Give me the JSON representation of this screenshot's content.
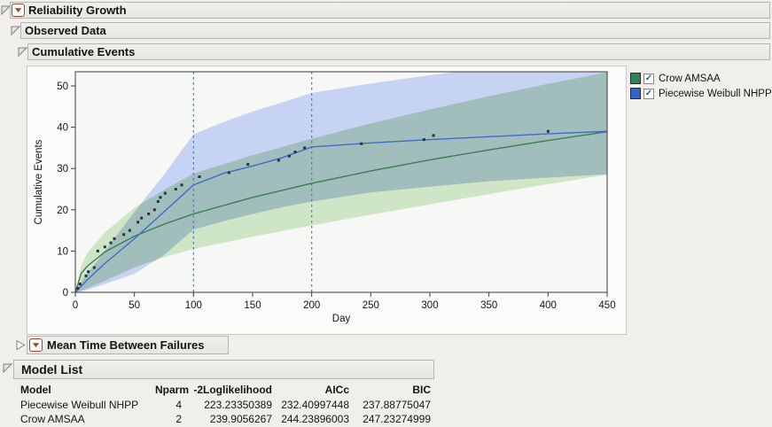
{
  "page_bg": "#f0efec",
  "outline": {
    "reliability_growth": {
      "label": "Reliability Growth",
      "expanded": true,
      "has_menu": true
    },
    "observed_data": {
      "label": "Observed Data",
      "expanded": true
    },
    "cumulative_events": {
      "label": "Cumulative Events",
      "expanded": true
    },
    "mtbf": {
      "label": "Mean Time Between Failures",
      "expanded": false,
      "has_menu": true
    },
    "model_list": {
      "label": "Model List",
      "expanded": true
    }
  },
  "legend": {
    "items": [
      {
        "label": "Crow AMSAA",
        "checked": true,
        "swatch_color": "#2e8456"
      },
      {
        "label": "Piecewise Weibull NHPP",
        "checked": true,
        "swatch_color": "#3464c8"
      }
    ]
  },
  "chart_data": {
    "type": "line",
    "title": "Cumulative Events",
    "xlabel": "Day",
    "ylabel": "Cumulative Events",
    "xlim": [
      0,
      450
    ],
    "ylim": [
      0,
      53.4
    ],
    "xticks": [
      0,
      50,
      100,
      150,
      200,
      250,
      300,
      350,
      400,
      450
    ],
    "yticks": [
      0,
      10,
      20,
      30,
      40,
      50
    ],
    "grid": false,
    "legend_position": "right-top",
    "phase_lines_x": [
      100,
      200
    ],
    "phase_line_color": "#4472ca",
    "observed_points": [
      [
        2,
        1
      ],
      [
        4,
        2
      ],
      [
        9,
        4
      ],
      [
        11,
        5
      ],
      [
        16,
        6
      ],
      [
        19,
        10
      ],
      [
        25,
        11
      ],
      [
        30,
        12
      ],
      [
        33,
        13
      ],
      [
        41,
        14
      ],
      [
        46,
        15
      ],
      [
        53,
        17
      ],
      [
        56,
        18
      ],
      [
        62,
        19
      ],
      [
        67,
        20
      ],
      [
        70,
        22
      ],
      [
        72,
        23
      ],
      [
        76,
        24
      ],
      [
        85,
        25
      ],
      [
        90,
        26
      ],
      [
        105,
        28
      ],
      [
        130,
        29
      ],
      [
        146,
        31
      ],
      [
        172,
        32
      ],
      [
        181,
        33
      ],
      [
        186,
        34
      ],
      [
        194,
        35
      ],
      [
        242,
        36
      ],
      [
        295,
        37
      ],
      [
        303,
        38
      ],
      [
        400,
        39
      ]
    ],
    "point_color": "#27323e",
    "series": [
      {
        "name": "Crow AMSAA",
        "line_color": "#3c7e52",
        "band_fill": "#cfe6c6",
        "x": [
          0,
          5,
          10,
          25,
          50,
          75,
          100,
          150,
          200,
          250,
          300,
          350,
          400,
          450
        ],
        "y": [
          0,
          4.6,
          6.3,
          9.8,
          13.6,
          16.5,
          19.0,
          23.0,
          26.4,
          29.4,
          32.1,
          34.5,
          36.8,
          38.9
        ],
        "band_lo": [
          0,
          0.4,
          1.0,
          2.8,
          6.0,
          8.5,
          10.5,
          13.5,
          16.2,
          18.8,
          21.3,
          23.8,
          26.2,
          28.5
        ],
        "band_hi": [
          0,
          6.5,
          9.5,
          14.5,
          20.5,
          24.8,
          28.8,
          33.2,
          37.2,
          40.9,
          44.3,
          47.5,
          50.5,
          53.3
        ]
      },
      {
        "name": "Piecewise Weibull NHPP",
        "line_color": "#3f6bcb",
        "band_fill": "#c6d3f2",
        "x": [
          0,
          5,
          10,
          25,
          50,
          75,
          100,
          125,
          150,
          175,
          200,
          250,
          300,
          350,
          400,
          450
        ],
        "y": [
          0,
          1.5,
          3.0,
          7.0,
          13.0,
          19.5,
          26.0,
          28.8,
          30.6,
          32.6,
          35.2,
          36.2,
          37.0,
          37.7,
          38.4,
          39.0
        ],
        "band_lo": [
          0,
          0.2,
          0.6,
          2.0,
          4.5,
          9.0,
          15.2,
          17.2,
          19.0,
          20.6,
          22.0,
          24.2,
          25.6,
          26.9,
          27.8,
          28.6
        ],
        "band_hi": [
          0,
          2.5,
          4.5,
          10.0,
          19.5,
          28.5,
          38.3,
          41.2,
          43.8,
          46.0,
          48.3,
          50.6,
          52.6,
          54.5,
          56.0,
          57.5
        ]
      }
    ]
  },
  "model_table": {
    "columns": [
      "Model",
      "Nparm",
      "-2Loglikelihood",
      "AICc",
      "BIC"
    ],
    "rows": [
      [
        "Piecewise Weibull NHPP",
        "4",
        "223.23350389",
        "232.40997448",
        "237.88775047"
      ],
      [
        "Crow AMSAA",
        "2",
        "239.9056267",
        "244.23896003",
        "247.23274999"
      ]
    ]
  }
}
